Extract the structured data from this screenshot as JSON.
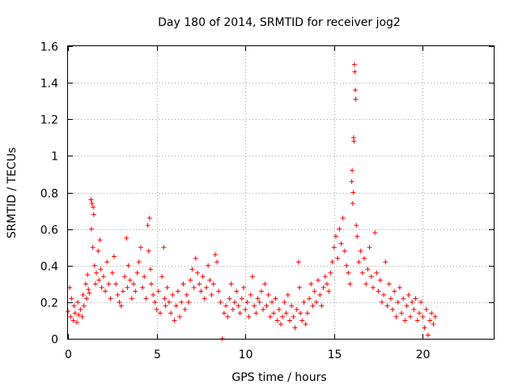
{
  "chart_data": {
    "type": "scatter",
    "title": "Day 180 of 2014, SRMTID for receiver jog2",
    "xlabel": "GPS time / hours",
    "ylabel": "SRMTID / TECUs",
    "xlim": [
      0,
      24
    ],
    "ylim": [
      0,
      1.6
    ],
    "xticks": [
      0,
      5,
      10,
      15,
      20
    ],
    "xtick_labels": [
      "0",
      "5",
      "10",
      "15",
      "20"
    ],
    "yticks": [
      0,
      0.2,
      0.4,
      0.6,
      0.8,
      1,
      1.2,
      1.4,
      1.6
    ],
    "ytick_labels": [
      "0",
      "0.2",
      "0.4",
      "0.6",
      "0.8",
      "1",
      "1.2",
      "1.4",
      "1.6"
    ],
    "grid": true,
    "marker": "+",
    "marker_color": "#ff0000",
    "series": [
      {
        "name": "SRMTID",
        "points": [
          [
            0.0,
            0.15
          ],
          [
            0.1,
            0.28
          ],
          [
            0.15,
            0.12
          ],
          [
            0.2,
            0.22
          ],
          [
            0.3,
            0.1
          ],
          [
            0.35,
            0.18
          ],
          [
            0.4,
            0.14
          ],
          [
            0.5,
            0.09
          ],
          [
            0.55,
            0.2
          ],
          [
            0.6,
            0.13
          ],
          [
            0.7,
            0.16
          ],
          [
            0.8,
            0.12
          ],
          [
            0.85,
            0.24
          ],
          [
            0.9,
            0.18
          ],
          [
            1.0,
            0.3
          ],
          [
            1.05,
            0.22
          ],
          [
            1.1,
            0.35
          ],
          [
            1.15,
            0.27
          ],
          [
            1.2,
            0.25
          ],
          [
            1.3,
            0.76
          ],
          [
            1.32,
            0.6
          ],
          [
            1.35,
            0.74
          ],
          [
            1.4,
            0.5
          ],
          [
            1.42,
            0.72
          ],
          [
            1.45,
            0.68
          ],
          [
            1.5,
            0.4
          ],
          [
            1.55,
            0.3
          ],
          [
            1.6,
            0.36
          ],
          [
            1.7,
            0.48
          ],
          [
            1.75,
            0.32
          ],
          [
            1.8,
            0.54
          ],
          [
            1.85,
            0.38
          ],
          [
            1.9,
            0.28
          ],
          [
            2.0,
            0.34
          ],
          [
            2.1,
            0.26
          ],
          [
            2.2,
            0.42
          ],
          [
            2.3,
            0.3
          ],
          [
            2.4,
            0.22
          ],
          [
            2.5,
            0.36
          ],
          [
            2.6,
            0.45
          ],
          [
            2.7,
            0.3
          ],
          [
            2.8,
            0.24
          ],
          [
            2.9,
            0.2
          ],
          [
            3.0,
            0.18
          ],
          [
            3.1,
            0.26
          ],
          [
            3.2,
            0.34
          ],
          [
            3.3,
            0.55
          ],
          [
            3.35,
            0.28
          ],
          [
            3.4,
            0.4
          ],
          [
            3.5,
            0.32
          ],
          [
            3.6,
            0.22
          ],
          [
            3.7,
            0.3
          ],
          [
            3.8,
            0.26
          ],
          [
            3.9,
            0.36
          ],
          [
            4.0,
            0.42
          ],
          [
            4.1,
            0.5
          ],
          [
            4.2,
            0.28
          ],
          [
            4.3,
            0.34
          ],
          [
            4.4,
            0.22
          ],
          [
            4.5,
            0.62
          ],
          [
            4.55,
            0.48
          ],
          [
            4.6,
            0.66
          ],
          [
            4.65,
            0.38
          ],
          [
            4.7,
            0.3
          ],
          [
            4.8,
            0.24
          ],
          [
            4.9,
            0.2
          ],
          [
            5.0,
            0.16
          ],
          [
            5.1,
            0.26
          ],
          [
            5.2,
            0.14
          ],
          [
            5.3,
            0.34
          ],
          [
            5.4,
            0.5
          ],
          [
            5.45,
            0.22
          ],
          [
            5.5,
            0.18
          ],
          [
            5.6,
            0.28
          ],
          [
            5.7,
            0.2
          ],
          [
            5.8,
            0.14
          ],
          [
            5.9,
            0.24
          ],
          [
            6.0,
            0.1
          ],
          [
            6.1,
            0.18
          ],
          [
            6.2,
            0.26
          ],
          [
            6.3,
            0.12
          ],
          [
            6.4,
            0.2
          ],
          [
            6.5,
            0.3
          ],
          [
            6.6,
            0.16
          ],
          [
            6.7,
            0.24
          ],
          [
            6.8,
            0.2
          ],
          [
            6.9,
            0.32
          ],
          [
            7.0,
            0.38
          ],
          [
            7.1,
            0.28
          ],
          [
            7.2,
            0.44
          ],
          [
            7.3,
            0.36
          ],
          [
            7.4,
            0.3
          ],
          [
            7.5,
            0.26
          ],
          [
            7.6,
            0.34
          ],
          [
            7.7,
            0.22
          ],
          [
            7.8,
            0.28
          ],
          [
            7.9,
            0.4
          ],
          [
            8.0,
            0.32
          ],
          [
            8.1,
            0.24
          ],
          [
            8.2,
            0.3
          ],
          [
            8.3,
            0.46
          ],
          [
            8.4,
            0.42
          ],
          [
            8.5,
            0.26
          ],
          [
            8.6,
            0.2
          ],
          [
            8.7,
            0.0
          ],
          [
            8.8,
            0.14
          ],
          [
            8.9,
            0.18
          ],
          [
            9.0,
            0.12
          ],
          [
            9.1,
            0.22
          ],
          [
            9.2,
            0.3
          ],
          [
            9.3,
            0.16
          ],
          [
            9.4,
            0.2
          ],
          [
            9.5,
            0.26
          ],
          [
            9.6,
            0.18
          ],
          [
            9.7,
            0.14
          ],
          [
            9.8,
            0.22
          ],
          [
            9.9,
            0.28
          ],
          [
            10.0,
            0.16
          ],
          [
            10.1,
            0.2
          ],
          [
            10.2,
            0.12
          ],
          [
            10.3,
            0.24
          ],
          [
            10.4,
            0.34
          ],
          [
            10.5,
            0.18
          ],
          [
            10.6,
            0.14
          ],
          [
            10.7,
            0.22
          ],
          [
            10.8,
            0.2
          ],
          [
            10.9,
            0.26
          ],
          [
            11.0,
            0.16
          ],
          [
            11.1,
            0.3
          ],
          [
            11.2,
            0.18
          ],
          [
            11.3,
            0.24
          ],
          [
            11.4,
            0.12
          ],
          [
            11.5,
            0.2
          ],
          [
            11.6,
            0.14
          ],
          [
            11.7,
            0.22
          ],
          [
            11.8,
            0.1
          ],
          [
            11.9,
            0.16
          ],
          [
            12.0,
            0.08
          ],
          [
            12.1,
            0.12
          ],
          [
            12.2,
            0.2
          ],
          [
            12.3,
            0.14
          ],
          [
            12.4,
            0.24
          ],
          [
            12.5,
            0.1
          ],
          [
            12.6,
            0.18
          ],
          [
            12.7,
            0.12
          ],
          [
            12.8,
            0.06
          ],
          [
            12.9,
            0.16
          ],
          [
            13.0,
            0.42
          ],
          [
            13.05,
            0.28
          ],
          [
            13.1,
            0.14
          ],
          [
            13.2,
            0.1
          ],
          [
            13.3,
            0.2
          ],
          [
            13.4,
            0.08
          ],
          [
            13.5,
            0.14
          ],
          [
            13.6,
            0.22
          ],
          [
            13.7,
            0.3
          ],
          [
            13.8,
            0.18
          ],
          [
            13.9,
            0.26
          ],
          [
            14.0,
            0.2
          ],
          [
            14.1,
            0.32
          ],
          [
            14.2,
            0.24
          ],
          [
            14.3,
            0.18
          ],
          [
            14.4,
            0.28
          ],
          [
            14.5,
            0.34
          ],
          [
            14.6,
            0.3
          ],
          [
            14.7,
            0.26
          ],
          [
            14.8,
            0.36
          ],
          [
            14.9,
            0.42
          ],
          [
            15.0,
            0.5
          ],
          [
            15.1,
            0.56
          ],
          [
            15.2,
            0.44
          ],
          [
            15.3,
            0.6
          ],
          [
            15.4,
            0.52
          ],
          [
            15.5,
            0.66
          ],
          [
            15.6,
            0.48
          ],
          [
            15.7,
            0.4
          ],
          [
            15.8,
            0.36
          ],
          [
            15.9,
            0.3
          ],
          [
            16.0,
            0.86
          ],
          [
            16.02,
            0.92
          ],
          [
            16.05,
            0.74
          ],
          [
            16.08,
            0.8
          ],
          [
            16.1,
            1.1
          ],
          [
            16.12,
            1.08
          ],
          [
            16.15,
            1.5
          ],
          [
            16.17,
            1.46
          ],
          [
            16.2,
            1.36
          ],
          [
            16.22,
            1.31
          ],
          [
            16.25,
            0.62
          ],
          [
            16.3,
            0.56
          ],
          [
            16.4,
            0.42
          ],
          [
            16.5,
            0.48
          ],
          [
            16.6,
            0.36
          ],
          [
            16.7,
            0.44
          ],
          [
            16.8,
            0.3
          ],
          [
            16.9,
            0.38
          ],
          [
            17.0,
            0.5
          ],
          [
            17.1,
            0.34
          ],
          [
            17.2,
            0.28
          ],
          [
            17.3,
            0.58
          ],
          [
            17.4,
            0.36
          ],
          [
            17.5,
            0.26
          ],
          [
            17.6,
            0.32
          ],
          [
            17.7,
            0.2
          ],
          [
            17.8,
            0.24
          ],
          [
            17.9,
            0.42
          ],
          [
            18.0,
            0.18
          ],
          [
            18.1,
            0.3
          ],
          [
            18.2,
            0.22
          ],
          [
            18.3,
            0.16
          ],
          [
            18.4,
            0.26
          ],
          [
            18.5,
            0.12
          ],
          [
            18.6,
            0.2
          ],
          [
            18.7,
            0.28
          ],
          [
            18.8,
            0.14
          ],
          [
            18.9,
            0.22
          ],
          [
            19.0,
            0.1
          ],
          [
            19.1,
            0.18
          ],
          [
            19.2,
            0.24
          ],
          [
            19.3,
            0.12
          ],
          [
            19.4,
            0.2
          ],
          [
            19.5,
            0.16
          ],
          [
            19.6,
            0.22
          ],
          [
            19.7,
            0.1
          ],
          [
            19.8,
            0.14
          ],
          [
            19.9,
            0.2
          ],
          [
            20.0,
            0.12
          ],
          [
            20.1,
            0.06
          ],
          [
            20.2,
            0.16
          ],
          [
            20.3,
            0.02
          ],
          [
            20.4,
            0.1
          ],
          [
            20.5,
            0.14
          ],
          [
            20.6,
            0.08
          ],
          [
            20.7,
            0.12
          ]
        ]
      }
    ]
  }
}
